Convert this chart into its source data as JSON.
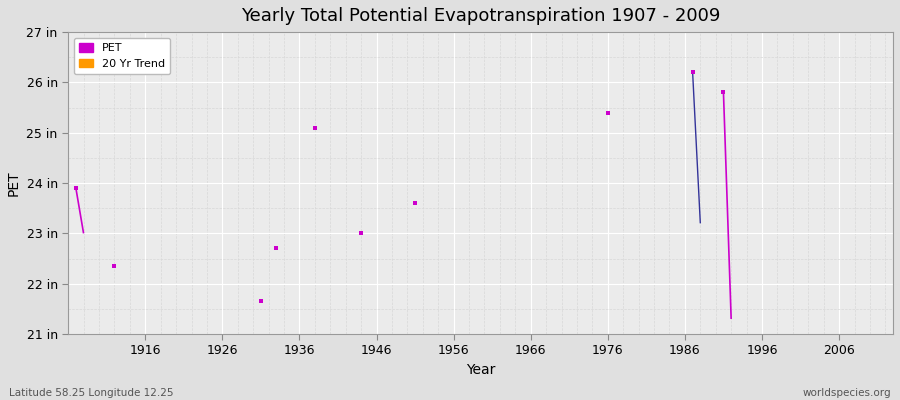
{
  "title": "Yearly Total Potential Evapotranspiration 1907 - 2009",
  "xlabel": "Year",
  "ylabel": "PET",
  "subtitle_left": "Latitude 58.25 Longitude 12.25",
  "subtitle_right": "worldspecies.org",
  "background_color": "#e0e0e0",
  "plot_bg_color": "#ebebeb",
  "xlim": [
    1906,
    2013
  ],
  "ylim": [
    21,
    27
  ],
  "ytick_labels": [
    "21 in",
    "22 in",
    "23 in",
    "24 in",
    "25 in",
    "26 in",
    "27 in"
  ],
  "ytick_values": [
    21,
    22,
    23,
    24,
    25,
    26,
    27
  ],
  "xtick_values": [
    1916,
    1926,
    1936,
    1946,
    1956,
    1966,
    1976,
    1986,
    1996,
    2006
  ],
  "pet_scatter": [
    [
      1912,
      22.35
    ],
    [
      1931,
      21.65
    ],
    [
      1933,
      22.72
    ],
    [
      1938,
      25.1
    ],
    [
      1944,
      23.0
    ],
    [
      1951,
      23.6
    ],
    [
      1976,
      25.4
    ]
  ],
  "line1_x": [
    1907,
    1908
  ],
  "line1_y": [
    23.9,
    23.0
  ],
  "line2_x": [
    1987,
    1988
  ],
  "line2_y": [
    26.2,
    23.2
  ],
  "line3_x": [
    1991,
    1992
  ],
  "line3_y": [
    25.8,
    21.3
  ],
  "pet_color": "#cc00cc",
  "line_color": "#cc00cc",
  "legend_pet_color": "#cc00cc",
  "legend_trend_color": "#ff9900"
}
